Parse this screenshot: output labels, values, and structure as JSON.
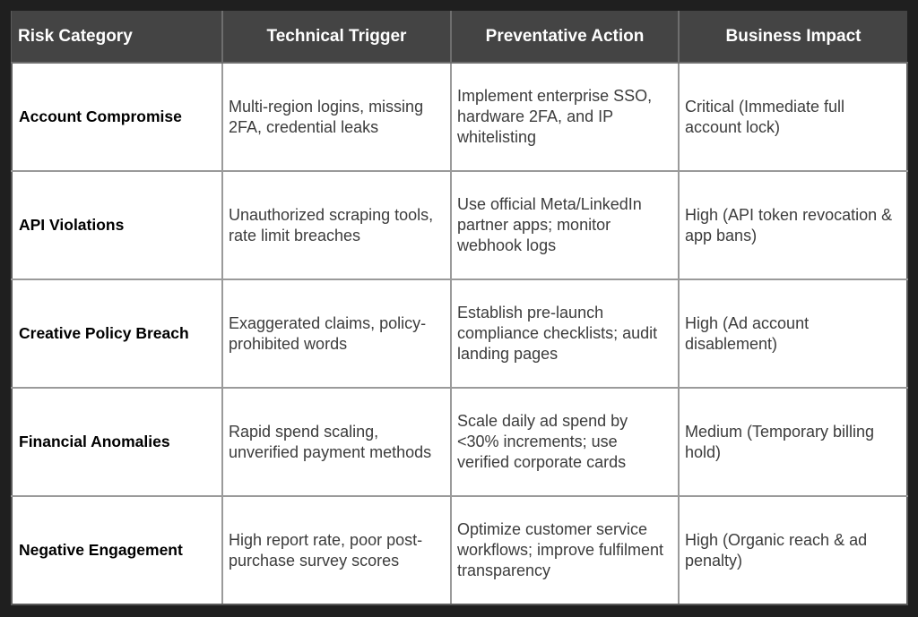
{
  "table": {
    "headers": [
      "Risk Category",
      "Technical Trigger",
      "Preventative Action",
      "Business Impact"
    ],
    "rows": [
      {
        "category": "Account Compromise",
        "trigger": "Multi-region logins, missing 2FA, credential leaks",
        "action": "Implement enterprise SSO, hardware 2FA, and IP whitelisting",
        "impact": "Critical (Immediate full account lock)"
      },
      {
        "category": "API Violations",
        "trigger": "Unauthorized scraping tools, rate limit breaches",
        "action": "Use official Meta/LinkedIn partner apps; monitor webhook logs",
        "impact": "High (API token revocation & app bans)"
      },
      {
        "category": "Creative Policy Breach",
        "trigger": "Exaggerated claims, policy-prohibited words",
        "action": "Establish pre-launch compliance checklists; audit landing pages",
        "impact": "High (Ad account disablement)"
      },
      {
        "category": "Financial Anomalies",
        "trigger": "Rapid spend scaling, unverified payment methods",
        "action": "Scale daily ad spend by <30% increments; use verified corporate cards",
        "impact": "Medium (Temporary billing hold)"
      },
      {
        "category": "Negative Engagement",
        "trigger": "High report rate, poor post-purchase survey scores",
        "action": "Optimize customer service workflows; improve fulfilment transparency",
        "impact": "High (Organic reach & ad penalty)"
      }
    ]
  }
}
